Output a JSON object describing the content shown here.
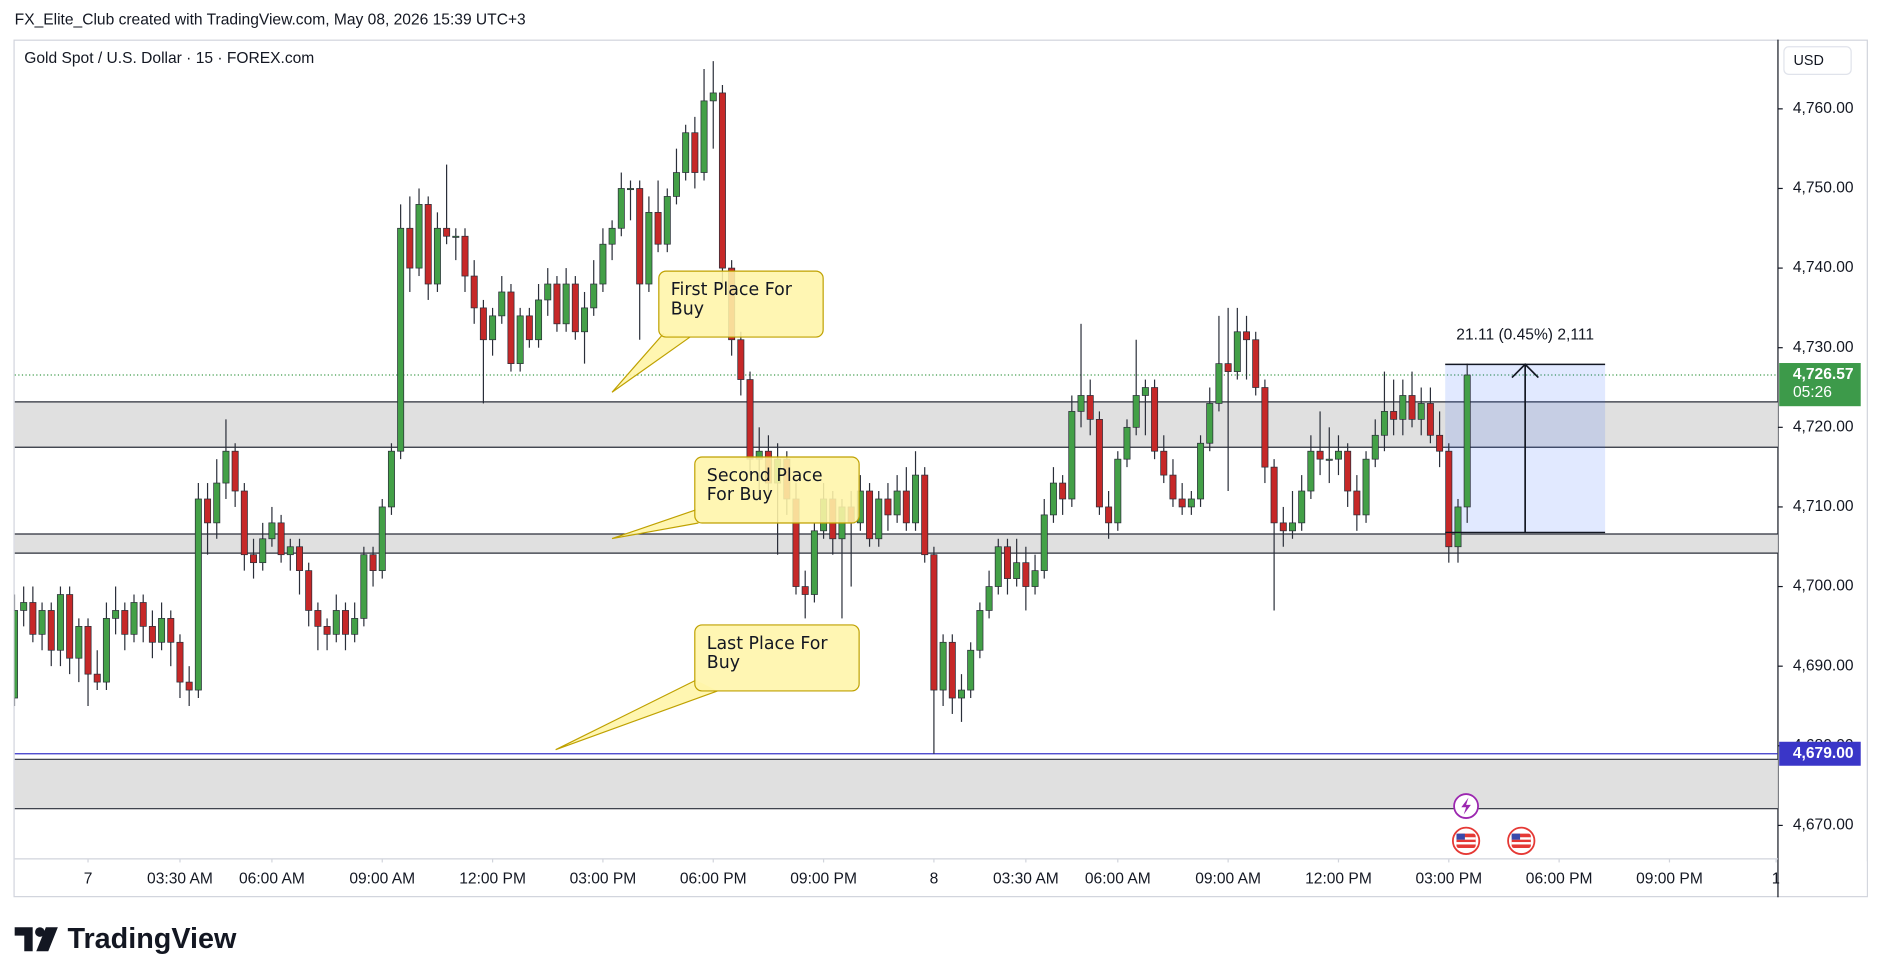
{
  "header": {
    "watermark": "FX_Elite_Club created with TradingView.com, May 08, 2026 15:39 UTC+3"
  },
  "chart_data": {
    "type": "candlestick",
    "title": "Gold Spot / U.S. Dollar · 15 · FOREX.com",
    "currency": "USD",
    "up_color": "#43a047",
    "down_color": "#c62828",
    "wick_color": "#2a2e39",
    "grid": false,
    "xlim": [
      -0.5,
      191.8
    ],
    "xticks": [
      {
        "value": 8,
        "label": "7"
      },
      {
        "value": 18,
        "label": "03:30 AM"
      },
      {
        "value": 28,
        "label": "06:00 AM"
      },
      {
        "value": 40,
        "label": "09:00 AM"
      },
      {
        "value": 52,
        "label": "12:00 PM"
      },
      {
        "value": 64,
        "label": "03:00 PM"
      },
      {
        "value": 76,
        "label": "06:00 PM"
      },
      {
        "value": 88,
        "label": "09:00 PM"
      },
      {
        "value": 100,
        "label": "8"
      },
      {
        "value": 110,
        "label": "03:30 AM"
      },
      {
        "value": 120,
        "label": "06:00 AM"
      },
      {
        "value": 132,
        "label": "09:00 AM"
      },
      {
        "value": 144,
        "label": "12:00 PM"
      },
      {
        "value": 156,
        "label": "03:00 PM"
      },
      {
        "value": 168,
        "label": "06:00 PM"
      },
      {
        "value": 180,
        "label": "09:00 PM"
      },
      {
        "value": 191.6,
        "label": "1"
      }
    ],
    "ylim": [
      4665.8,
      4768.7
    ],
    "yticks": [
      {
        "value": 4670,
        "label": "4,670.00"
      },
      {
        "value": 4680,
        "label": "4,680.00"
      },
      {
        "value": 4690,
        "label": "4,690.00"
      },
      {
        "value": 4700,
        "label": "4,700.00"
      },
      {
        "value": 4710,
        "label": "4,710.00"
      },
      {
        "value": 4720,
        "label": "4,720.00"
      },
      {
        "value": 4730,
        "label": "4,730.00"
      },
      {
        "value": 4740,
        "label": "4,740.00"
      },
      {
        "value": 4750,
        "label": "4,750.00"
      },
      {
        "value": 4760,
        "label": "4,760.00"
      }
    ],
    "candles": [
      [
        4686,
        4699,
        4685,
        4697
      ],
      [
        4697,
        4700,
        4695,
        4698
      ],
      [
        4698,
        4700,
        4693,
        4694
      ],
      [
        4694,
        4698,
        4692,
        4697
      ],
      [
        4697,
        4698,
        4690,
        4692
      ],
      [
        4692,
        4700,
        4690,
        4699
      ],
      [
        4699,
        4700,
        4689,
        4691
      ],
      [
        4691,
        4696,
        4688,
        4695
      ],
      [
        4695,
        4696,
        4685,
        4689
      ],
      [
        4689,
        4692,
        4687,
        4688
      ],
      [
        4688,
        4698,
        4687,
        4696
      ],
      [
        4696,
        4700,
        4694,
        4697
      ],
      [
        4697,
        4698,
        4692,
        4694
      ],
      [
        4694,
        4699,
        4693,
        4698
      ],
      [
        4698,
        4699,
        4693,
        4695
      ],
      [
        4695,
        4697,
        4691,
        4693
      ],
      [
        4693,
        4698,
        4692,
        4696
      ],
      [
        4696,
        4697,
        4690,
        4693
      ],
      [
        4693,
        4694,
        4686,
        4688
      ],
      [
        4688,
        4690,
        4685,
        4687
      ],
      [
        4687,
        4713,
        4686,
        4711
      ],
      [
        4711,
        4713,
        4704,
        4708
      ],
      [
        4708,
        4716,
        4706,
        4713
      ],
      [
        4713,
        4721,
        4711,
        4717
      ],
      [
        4717,
        4718,
        4710,
        4712
      ],
      [
        4712,
        4713,
        4702,
        4704
      ],
      [
        4704,
        4706,
        4701,
        4703
      ],
      [
        4703,
        4708,
        4702,
        4706
      ],
      [
        4706,
        4710,
        4705,
        4708
      ],
      [
        4708,
        4709,
        4703,
        4704
      ],
      [
        4704,
        4706,
        4702,
        4705
      ],
      [
        4705,
        4706,
        4699,
        4702
      ],
      [
        4702,
        4703,
        4695,
        4697
      ],
      [
        4697,
        4698,
        4692,
        4695
      ],
      [
        4695,
        4696,
        4692,
        4694
      ],
      [
        4694,
        4699,
        4693,
        4697
      ],
      [
        4697,
        4698,
        4692,
        4694
      ],
      [
        4694,
        4698,
        4693,
        4696
      ],
      [
        4696,
        4705,
        4695,
        4704
      ],
      [
        4704,
        4705,
        4700,
        4702
      ],
      [
        4702,
        4711,
        4701,
        4710
      ],
      [
        4710,
        4718,
        4709,
        4717
      ],
      [
        4717,
        4748,
        4716,
        4745
      ],
      [
        4745,
        4749,
        4737,
        4740
      ],
      [
        4740,
        4750,
        4739,
        4748
      ],
      [
        4748,
        4749,
        4736,
        4738
      ],
      [
        4738,
        4747,
        4737,
        4745
      ],
      [
        4745,
        4753,
        4743,
        4744
      ],
      [
        4744,
        4745,
        4741,
        4744
      ],
      [
        4744,
        4745,
        4737,
        4739
      ],
      [
        4739,
        4741,
        4733,
        4735
      ],
      [
        4735,
        4736,
        4723,
        4731
      ],
      [
        4731,
        4735,
        4729,
        4734
      ],
      [
        4734,
        4739,
        4733,
        4737
      ],
      [
        4737,
        4738,
        4727,
        4728
      ],
      [
        4728,
        4735,
        4727,
        4734
      ],
      [
        4734,
        4735,
        4730,
        4731
      ],
      [
        4731,
        4738,
        4730,
        4736
      ],
      [
        4736,
        4740,
        4734,
        4738
      ],
      [
        4738,
        4739,
        4732,
        4733
      ],
      [
        4733,
        4740,
        4732,
        4738
      ],
      [
        4738,
        4739,
        4731,
        4732
      ],
      [
        4732,
        4737,
        4728,
        4735
      ],
      [
        4735,
        4741,
        4734,
        4738
      ],
      [
        4738,
        4745,
        4737,
        4743
      ],
      [
        4743,
        4746,
        4741,
        4745
      ],
      [
        4745,
        4752,
        4744,
        4750
      ],
      [
        4750,
        4751,
        4746,
        4750
      ],
      [
        4750,
        4751,
        4731,
        4738
      ],
      [
        4738,
        4749,
        4737,
        4747
      ],
      [
        4747,
        4751,
        4742,
        4743
      ],
      [
        4743,
        4750,
        4742,
        4749
      ],
      [
        4749,
        4755,
        4748,
        4752
      ],
      [
        4752,
        4758,
        4751,
        4757
      ],
      [
        4757,
        4759,
        4750,
        4752
      ],
      [
        4752,
        4765,
        4751,
        4761
      ],
      [
        4761,
        4766,
        4755,
        4762
      ],
      [
        4762,
        4763,
        4738,
        4740
      ],
      [
        4740,
        4741,
        4729,
        4731
      ],
      [
        4731,
        4732,
        4724,
        4726
      ],
      [
        4726,
        4727,
        4714,
        4716
      ],
      [
        4716,
        4720,
        4711,
        4717
      ],
      [
        4717,
        4719,
        4711,
        4713
      ],
      [
        4713,
        4718,
        4704,
        4716
      ],
      [
        4716,
        4717,
        4709,
        4711
      ],
      [
        4711,
        4713,
        4699,
        4700
      ],
      [
        4700,
        4702,
        4696,
        4699
      ],
      [
        4699,
        4708,
        4698,
        4707
      ],
      [
        4707,
        4713,
        4706,
        4711
      ],
      [
        4711,
        4712,
        4704,
        4706
      ],
      [
        4706,
        4711,
        4696,
        4710
      ],
      [
        4710,
        4712,
        4700,
        4708
      ],
      [
        4708,
        4714,
        4707,
        4712
      ],
      [
        4712,
        4713,
        4705,
        4706
      ],
      [
        4706,
        4712,
        4705,
        4711
      ],
      [
        4711,
        4713,
        4707,
        4709
      ],
      [
        4709,
        4714,
        4708,
        4712
      ],
      [
        4712,
        4715,
        4707,
        4708
      ],
      [
        4708,
        4717,
        4707,
        4714
      ],
      [
        4714,
        4715,
        4703,
        4704
      ],
      [
        4704,
        4705,
        4679,
        4687
      ],
      [
        4687,
        4694,
        4685,
        4693
      ],
      [
        4693,
        4694,
        4684,
        4686
      ],
      [
        4686,
        4689,
        4683,
        4687
      ],
      [
        4687,
        4693,
        4686,
        4692
      ],
      [
        4692,
        4698,
        4691,
        4697
      ],
      [
        4697,
        4702,
        4696,
        4700
      ],
      [
        4700,
        4706,
        4699,
        4705
      ],
      [
        4705,
        4706,
        4699,
        4701
      ],
      [
        4701,
        4706,
        4700,
        4703
      ],
      [
        4703,
        4705,
        4697,
        4700
      ],
      [
        4700,
        4704,
        4699,
        4702
      ],
      [
        4702,
        4711,
        4701,
        4709
      ],
      [
        4709,
        4715,
        4708,
        4713
      ],
      [
        4713,
        4714,
        4709,
        4711
      ],
      [
        4711,
        4724,
        4710,
        4722
      ],
      [
        4722,
        4733,
        4720,
        4724
      ],
      [
        4724,
        4726,
        4719,
        4721
      ],
      [
        4721,
        4722,
        4709,
        4710
      ],
      [
        4710,
        4712,
        4706,
        4708
      ],
      [
        4708,
        4717,
        4707,
        4716
      ],
      [
        4716,
        4721,
        4715,
        4720
      ],
      [
        4720,
        4731,
        4719,
        4724
      ],
      [
        4724,
        4726,
        4719,
        4725
      ],
      [
        4725,
        4726,
        4716,
        4717
      ],
      [
        4717,
        4719,
        4713,
        4714
      ],
      [
        4714,
        4716,
        4710,
        4711
      ],
      [
        4711,
        4713,
        4709,
        4710
      ],
      [
        4710,
        4712,
        4709,
        4711
      ],
      [
        4711,
        4719,
        4710,
        4718
      ],
      [
        4718,
        4725,
        4717,
        4723
      ],
      [
        4723,
        4734,
        4722,
        4728
      ],
      [
        4728,
        4735,
        4712,
        4727
      ],
      [
        4727,
        4735,
        4726,
        4732
      ],
      [
        4732,
        4734,
        4726,
        4731
      ],
      [
        4731,
        4732,
        4724,
        4725
      ],
      [
        4725,
        4726,
        4713,
        4715
      ],
      [
        4715,
        4716,
        4697,
        4708
      ],
      [
        4708,
        4710,
        4705,
        4707
      ],
      [
        4707,
        4712,
        4706,
        4708
      ],
      [
        4708,
        4714,
        4707,
        4712
      ],
      [
        4712,
        4719,
        4711,
        4717
      ],
      [
        4717,
        4722,
        4714,
        4716
      ],
      [
        4716,
        4720,
        4713,
        4716
      ],
      [
        4716,
        4719,
        4714,
        4717
      ],
      [
        4717,
        4718,
        4710,
        4712
      ],
      [
        4712,
        4714,
        4707,
        4709
      ],
      [
        4709,
        4717,
        4708,
        4716
      ],
      [
        4716,
        4721,
        4715,
        4719
      ],
      [
        4719,
        4727,
        4717,
        4722
      ],
      [
        4722,
        4726,
        4719,
        4721
      ],
      [
        4721,
        4726,
        4719,
        4724
      ],
      [
        4724,
        4727,
        4720,
        4721
      ],
      [
        4721,
        4725,
        4719,
        4723
      ],
      [
        4723,
        4725,
        4718,
        4719
      ],
      [
        4719,
        4722,
        4715,
        4717
      ],
      [
        4717,
        4718,
        4703,
        4705
      ],
      [
        4705,
        4711,
        4703,
        4710
      ],
      [
        4710,
        4728,
        4708,
        4726.57
      ]
    ],
    "zones": [
      [
        4723.2,
        4717.5
      ],
      [
        4706.6,
        4704.2
      ],
      [
        4678.3,
        4672.1
      ]
    ],
    "zone_color": "#e0e0e0",
    "level_line": {
      "value": 4679,
      "label": "4,679.00",
      "color": "#3a36c8"
    },
    "last_price": {
      "value": 4726.57,
      "label": "4,726.57",
      "countdown": "05:26",
      "color": "#3d9a4a"
    },
    "measure": {
      "from": 4706.8,
      "to": 4727.91,
      "label": "21.11 (0.45%) 2,111",
      "color": "#2962ff"
    },
    "annotations": [
      "First Place For Buy",
      "Second Place For Buy",
      "Last Place For Buy"
    ]
  },
  "footer": {
    "logo": "TradingView"
  }
}
